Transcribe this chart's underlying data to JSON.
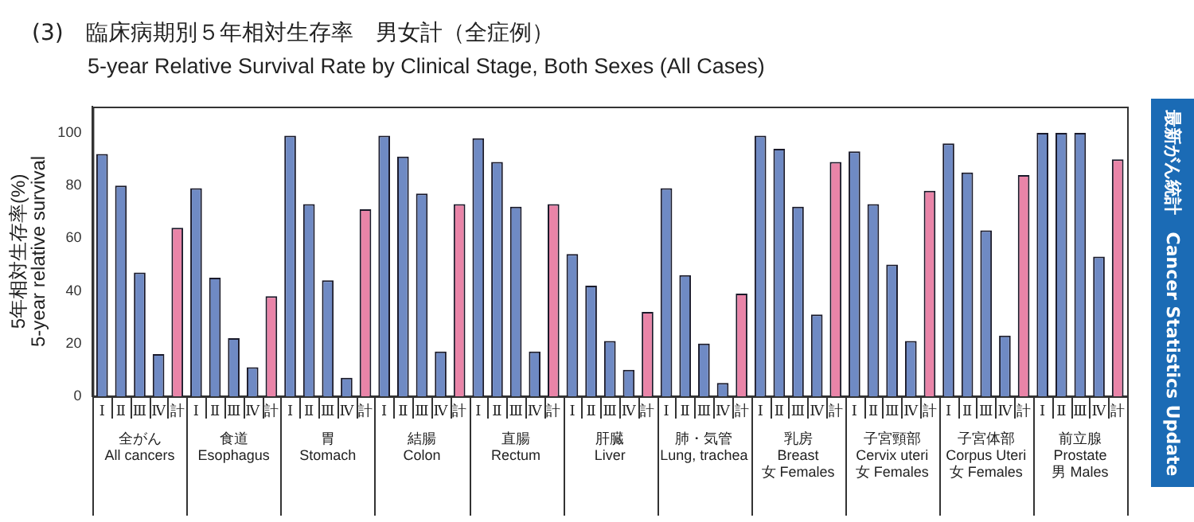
{
  "chart_data": {
    "type": "bar",
    "title": "(3)　臨床病期別５年相対生存率　男女計（全症例）",
    "subtitle": "5-year Relative Survival Rate by Clinical Stage, Both Sexes (All Cases)",
    "ylabel": "5年相対生存率(%)\n5-year relative survival",
    "annotations": [
      "最新がん統計　Cancer Statistics Update"
    ],
    "categories": [
      "全がん\nAll cancers",
      "食道\nEsophagus",
      "胃\nStomach",
      "結腸\nColon",
      "直腸\nRectum",
      "肝臓\nLiver",
      "肺・気管\nLung, trachea",
      "乳房\nBreast\n女 Females",
      "子宮頸部\nCervix uteri\n女 Females",
      "子宮体部\nCorpus Uteri\n女 Females",
      "前立腺\nProstate\n男 Males"
    ],
    "series": [
      {
        "name": "Ⅰ",
        "color": "#6f8ac4",
        "values": [
          92,
          79,
          99,
          99,
          98,
          54,
          79,
          99,
          93,
          96,
          100
        ]
      },
      {
        "name": "Ⅱ",
        "color": "#6f8ac4",
        "values": [
          80,
          45,
          73,
          91,
          89,
          42,
          46,
          94,
          73,
          85,
          100
        ]
      },
      {
        "name": "Ⅲ",
        "color": "#6f8ac4",
        "values": [
          47,
          22,
          44,
          77,
          72,
          21,
          20,
          72,
          50,
          63,
          100
        ]
      },
      {
        "name": "Ⅳ",
        "color": "#6f8ac4",
        "values": [
          16,
          11,
          7,
          17,
          17,
          10,
          5,
          31,
          21,
          23,
          53
        ]
      },
      {
        "name": "計",
        "color": "#e984a8",
        "values": [
          64,
          38,
          71,
          73,
          73,
          32,
          39,
          89,
          78,
          84,
          90
        ]
      }
    ],
    "ylim": [
      0,
      110
    ],
    "yticks": [
      0,
      20,
      40,
      60,
      80,
      100
    ],
    "grid": false,
    "legend": false
  }
}
